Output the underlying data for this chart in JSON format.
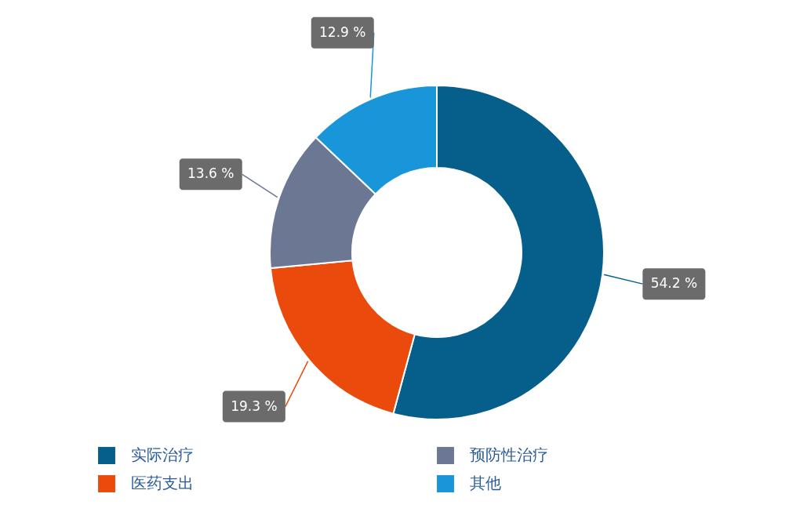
{
  "chart_data": {
    "type": "donut",
    "categories": [
      "实际治疗",
      "医药支出",
      "预防性治疗",
      "其他"
    ],
    "values": [
      54.2,
      19.3,
      13.6,
      12.9
    ],
    "colors": [
      "#055f8a",
      "#ea4a0b",
      "#6c7893",
      "#1996d9"
    ],
    "value_labels": [
      "54.2 %",
      "19.3 %",
      "13.6 %",
      "12.9 %"
    ],
    "legend": "bottom"
  }
}
